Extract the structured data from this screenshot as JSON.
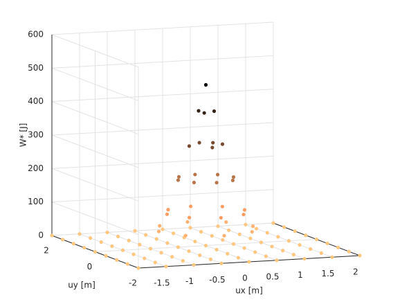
{
  "chart_data": {
    "type": "scatter3d",
    "xlabel": "ux [m]",
    "ylabel": "uy [m]",
    "zlabel": "W* [J]",
    "xlim": [
      -2,
      2
    ],
    "ylim": [
      -2,
      2
    ],
    "zlim": [
      0,
      600
    ],
    "xticks": [
      -1.5,
      -1,
      -0.5,
      0,
      0.5,
      1,
      1.5,
      2
    ],
    "yticks": [
      -2,
      0,
      2
    ],
    "zticks": [
      0,
      100,
      200,
      300,
      400,
      500,
      600
    ],
    "grid": true,
    "colormap": "copper",
    "colormap_reversed": true,
    "x": [
      -2,
      -1.5,
      -1,
      -0.5,
      0,
      0.5,
      1,
      1.5,
      2,
      -2,
      -1.5,
      -1,
      -0.5,
      0,
      0.5,
      1,
      1.5,
      2,
      -2,
      -1.5,
      -1,
      -0.5,
      0,
      0.5,
      1,
      1.5,
      2,
      -2,
      -1.5,
      -1,
      -0.5,
      0,
      0.5,
      1,
      1.5,
      2,
      -2,
      -1.5,
      -1,
      -0.5,
      0,
      0.5,
      1,
      1.5,
      2,
      -2,
      -1.5,
      -1,
      -0.5,
      0,
      0.5,
      1,
      1.5,
      2,
      -2,
      -1.5,
      -1,
      -0.5,
      0,
      0.5,
      1,
      1.5,
      2,
      -2,
      -1.5,
      -1,
      -0.5,
      0,
      0.5,
      1,
      1.5,
      2,
      -2,
      -1.5,
      -1,
      -0.5,
      0,
      0.5,
      1,
      1.5,
      2,
      0,
      0.15,
      -0.08,
      -0.08,
      0.3,
      0,
      -0.3,
      0,
      0.21,
      0.5,
      0.35,
      0,
      -0.35,
      -0.5,
      -0.35,
      0,
      0.35,
      0.7,
      0.49,
      0,
      -0.49,
      -0.7,
      -0.49,
      0,
      0.49,
      0.85,
      0.6,
      0,
      -0.6,
      -0.85,
      -0.6,
      0,
      0.6
    ],
    "y": [
      2,
      2,
      2,
      2,
      2,
      2,
      2,
      2,
      2,
      1.5,
      1.5,
      1.5,
      1.5,
      1.5,
      1.5,
      1.5,
      1.5,
      1.5,
      1,
      1,
      1,
      1,
      1,
      1,
      1,
      1,
      1,
      0.5,
      0.5,
      0.5,
      0.5,
      0.5,
      0.5,
      0.5,
      0.5,
      0.5,
      0,
      0,
      0,
      0,
      0,
      0,
      0,
      0,
      0,
      -0.5,
      -0.5,
      -0.5,
      -0.5,
      -0.5,
      -0.5,
      -0.5,
      -0.5,
      -0.5,
      -1,
      -1,
      -1,
      -1,
      -1,
      -1,
      -1,
      -1,
      -1,
      -1.5,
      -1.5,
      -1.5,
      -1.5,
      -1.5,
      -1.5,
      -1.5,
      -1.5,
      -1.5,
      -2,
      -2,
      -2,
      -2,
      -2,
      -2,
      -2,
      -2,
      -2,
      0,
      0,
      0.13,
      -0.13,
      0,
      0.3,
      0,
      -0.3,
      0.21,
      0,
      0.35,
      0.5,
      0.35,
      0,
      -0.35,
      -0.5,
      -0.35,
      0,
      0.49,
      0.7,
      0.49,
      0,
      -0.49,
      -0.7,
      -0.49,
      0,
      0.6,
      0.85,
      0.6,
      0,
      -0.6,
      -0.85,
      -0.6
    ],
    "z": [
      0,
      0,
      0,
      0,
      0,
      0,
      0,
      0,
      0,
      0,
      0,
      0,
      0,
      0,
      0,
      0,
      0,
      0,
      0,
      0,
      0,
      0,
      0,
      0,
      0,
      0,
      0,
      0,
      0,
      0,
      0,
      0,
      0,
      0,
      0,
      0,
      0,
      0,
      0,
      0,
      0,
      0,
      0,
      0,
      0,
      0,
      0,
      0,
      0,
      0,
      0,
      0,
      0,
      0,
      0,
      0,
      0,
      0,
      0,
      0,
      0,
      0,
      0,
      0,
      0,
      0,
      0,
      0,
      0,
      0,
      0,
      0,
      0,
      0,
      0,
      0,
      0,
      0,
      0,
      0,
      0,
      480,
      400,
      400,
      400,
      300,
      300,
      300,
      300,
      300,
      200,
      200,
      200,
      200,
      200,
      200,
      200,
      200,
      100,
      100,
      100,
      100,
      100,
      100,
      100,
      100,
      50,
      50,
      50,
      50,
      50,
      50,
      50,
      50
    ]
  }
}
